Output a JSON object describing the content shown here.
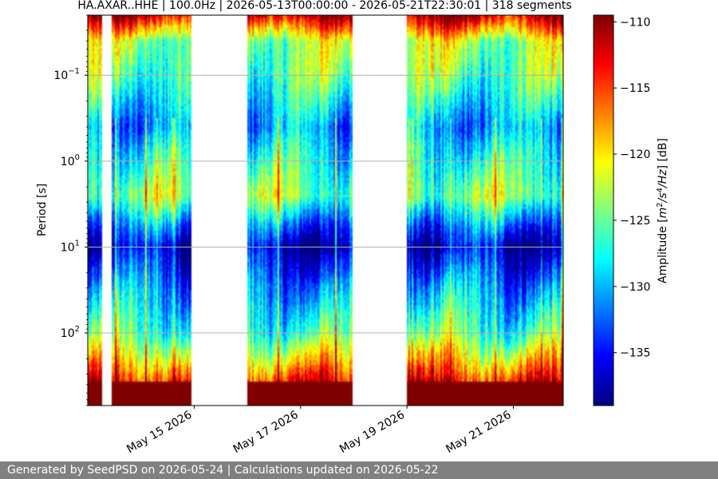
{
  "chart_data": {
    "type": "heatmap",
    "title": "HA.AXAR..HHE | 100.0Hz | 2026-05-13T00:00:00 - 2026-05-21T22:30:01 | 318 segments",
    "ylabel": "Period [s]",
    "xlabel": "",
    "yscale": "log",
    "y_inverted": true,
    "ylim": [
      0.02,
      700
    ],
    "xlim": [
      "2026-05-13T00:00",
      "2026-05-21T22:30"
    ],
    "x_ticks": [
      {
        "label": "May 15 2026",
        "value": "2026-05-15"
      },
      {
        "label": "May 17 2026",
        "value": "2026-05-17"
      },
      {
        "label": "May 19 2026",
        "value": "2026-05-19"
      },
      {
        "label": "May 21 2026",
        "value": "2026-05-21"
      }
    ],
    "y_ticks": [
      {
        "label": "10^-1",
        "value": 0.1
      },
      {
        "label": "10^0",
        "value": 1
      },
      {
        "label": "10^1",
        "value": 10
      },
      {
        "label": "10^2",
        "value": 100
      }
    ],
    "grid": true,
    "colormap": "jet",
    "colorbar": {
      "label": "Amplitude [m^2/s^4/Hz] [dB]",
      "range": [
        -139,
        -109.5
      ],
      "ticks": [
        -110,
        -115,
        -120,
        -125,
        -130,
        -135
      ]
    },
    "data_gaps": [
      [
        "2026-05-13T06:30",
        "2026-05-13T10:30"
      ],
      [
        "2026-05-14T23:00",
        "2026-05-16T00:00"
      ],
      [
        "2026-05-17T23:30",
        "2026-05-19T00:00"
      ]
    ],
    "period_profile_db": [
      {
        "period": 0.02,
        "db": -111
      },
      {
        "period": 0.04,
        "db": -123
      },
      {
        "period": 0.1,
        "db": -125
      },
      {
        "period": 0.4,
        "db": -131
      },
      {
        "period": 0.8,
        "db": -128
      },
      {
        "period": 2.5,
        "db": -124
      },
      {
        "period": 6,
        "db": -133
      },
      {
        "period": 10,
        "db": -137
      },
      {
        "period": 30,
        "db": -131
      },
      {
        "period": 100,
        "db": -126
      },
      {
        "period": 200,
        "db": -120
      },
      {
        "period": 300,
        "db": -116
      },
      {
        "period": 500,
        "db": -110
      }
    ]
  },
  "labels": {
    "y_tick_base": "10",
    "y_exponents": [
      "−1",
      "0",
      "1",
      "2"
    ],
    "colorbar_label_prefix": "Amplitude [",
    "colorbar_label_unit_m": "m",
    "colorbar_label_sup2": "2",
    "colorbar_label_unit_s": "/s",
    "colorbar_label_sup4": "4",
    "colorbar_label_unit_hz": "/Hz",
    "colorbar_label_suffix": "] [dB]",
    "colorbar_tick_labels": [
      "−110",
      "−115",
      "−120",
      "−125",
      "−130",
      "−135"
    ]
  },
  "footer": {
    "text": "Generated by SeedPSD on 2026-05-24 | Calculations updated on 2026-05-22"
  }
}
